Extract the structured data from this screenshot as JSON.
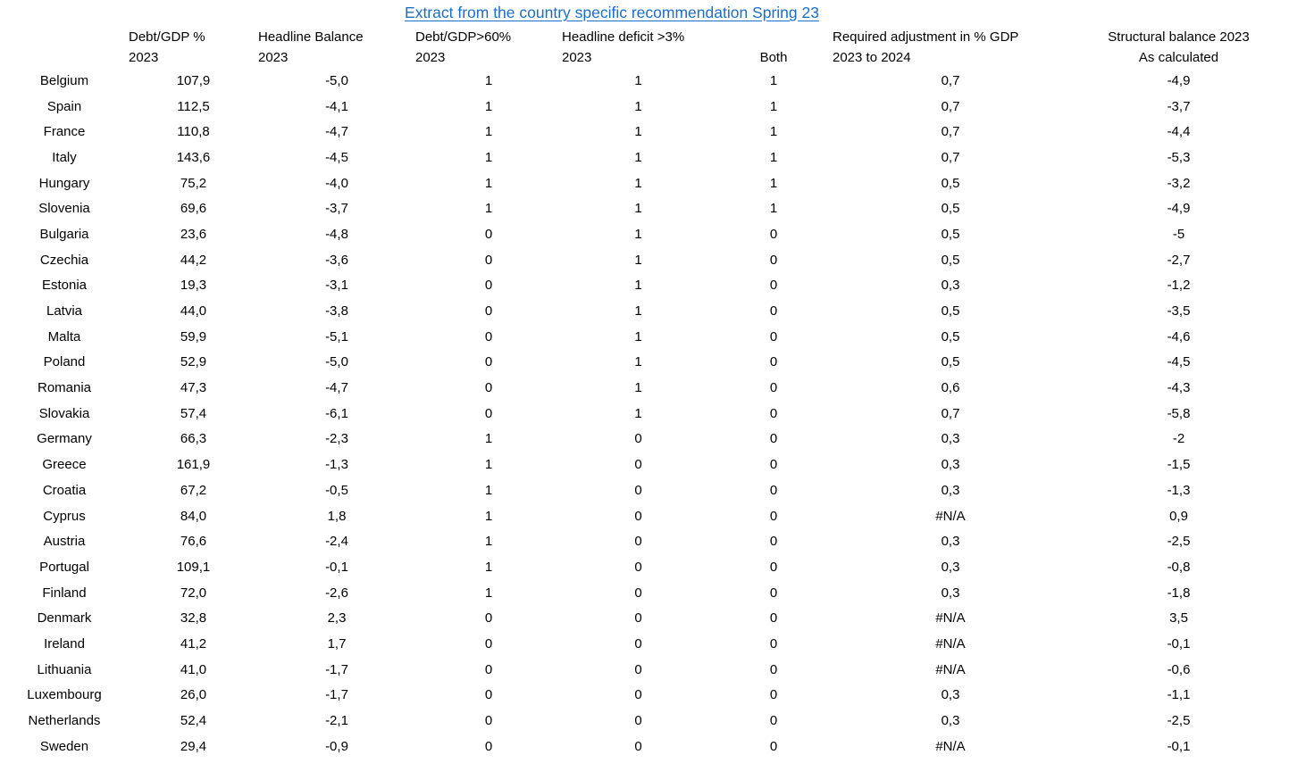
{
  "title": {
    "text": "Extract from the country specific recommendation Spring 23",
    "color": "#1b6ec8"
  },
  "table": {
    "columns": [
      {
        "line1": "",
        "line2": ""
      },
      {
        "line1": "Debt/GDP %",
        "line2": "2023"
      },
      {
        "line1": "Headline Balance",
        "line2": "2023"
      },
      {
        "line1": "Debt/GDP>60%",
        "line2": "2023"
      },
      {
        "line1": "Headline deficit >3%",
        "line2": "2023"
      },
      {
        "line1": "",
        "line2": "Both"
      },
      {
        "line1": "Required adjustment in % GDP",
        "line2": "2023 to 2024"
      },
      {
        "line1": "Structural balance 2023",
        "line2": "As calculated"
      }
    ],
    "rows": [
      [
        "Belgium",
        "107,9",
        "-5,0",
        "1",
        "1",
        "1",
        "0,7",
        "-4,9"
      ],
      [
        "Spain",
        "112,5",
        "-4,1",
        "1",
        "1",
        "1",
        "0,7",
        "-3,7"
      ],
      [
        "France",
        "110,8",
        "-4,7",
        "1",
        "1",
        "1",
        "0,7",
        "-4,4"
      ],
      [
        "Italy",
        "143,6",
        "-4,5",
        "1",
        "1",
        "1",
        "0,7",
        "-5,3"
      ],
      [
        "Hungary",
        "75,2",
        "-4,0",
        "1",
        "1",
        "1",
        "0,5",
        "-3,2"
      ],
      [
        "Slovenia",
        "69,6",
        "-3,7",
        "1",
        "1",
        "1",
        "0,5",
        "-4,9"
      ],
      [
        "Bulgaria",
        "23,6",
        "-4,8",
        "0",
        "1",
        "0",
        "0,5",
        "-5"
      ],
      [
        "Czechia",
        "44,2",
        "-3,6",
        "0",
        "1",
        "0",
        "0,5",
        "-2,7"
      ],
      [
        "Estonia",
        "19,3",
        "-3,1",
        "0",
        "1",
        "0",
        "0,3",
        "-1,2"
      ],
      [
        "Latvia",
        "44,0",
        "-3,8",
        "0",
        "1",
        "0",
        "0,5",
        "-3,5"
      ],
      [
        "Malta",
        "59,9",
        "-5,1",
        "0",
        "1",
        "0",
        "0,5",
        "-4,6"
      ],
      [
        "Poland",
        "52,9",
        "-5,0",
        "0",
        "1",
        "0",
        "0,5",
        "-4,5"
      ],
      [
        "Romania",
        "47,3",
        "-4,7",
        "0",
        "1",
        "0",
        "0,6",
        "-4,3"
      ],
      [
        "Slovakia",
        "57,4",
        "-6,1",
        "0",
        "1",
        "0",
        "0,7",
        "-5,8"
      ],
      [
        "Germany",
        "66,3",
        "-2,3",
        "1",
        "0",
        "0",
        "0,3",
        "-2"
      ],
      [
        "Greece",
        "161,9",
        "-1,3",
        "1",
        "0",
        "0",
        "0,3",
        "-1,5"
      ],
      [
        "Croatia",
        "67,2",
        "-0,5",
        "1",
        "0",
        "0",
        "0,3",
        "-1,3"
      ],
      [
        "Cyprus",
        "84,0",
        "1,8",
        "1",
        "0",
        "0",
        "#N/A",
        "0,9"
      ],
      [
        "Austria",
        "76,6",
        "-2,4",
        "1",
        "0",
        "0",
        "0,3",
        "-2,5"
      ],
      [
        "Portugal",
        "109,1",
        "-0,1",
        "1",
        "0",
        "0",
        "0,3",
        "-0,8"
      ],
      [
        "Finland",
        "72,0",
        "-2,6",
        "1",
        "0",
        "0",
        "0,3",
        "-1,8"
      ],
      [
        "Denmark",
        "32,8",
        "2,3",
        "0",
        "0",
        "0",
        "#N/A",
        "3,5"
      ],
      [
        "Ireland",
        "41,2",
        "1,7",
        "0",
        "0",
        "0",
        "#N/A",
        "-0,1"
      ],
      [
        "Lithuania",
        "41,0",
        "-1,7",
        "0",
        "0",
        "0",
        "#N/A",
        "-0,6"
      ],
      [
        "Luxembourg",
        "26,0",
        "-1,7",
        "0",
        "0",
        "0",
        "0,3",
        "-1,1"
      ],
      [
        "Netherlands",
        "52,4",
        "-2,1",
        "0",
        "0",
        "0",
        "0,3",
        "-2,5"
      ],
      [
        "Sweden",
        "29,4",
        "-0,9",
        "0",
        "0",
        "0",
        "#N/A",
        "-0,1"
      ]
    ]
  }
}
